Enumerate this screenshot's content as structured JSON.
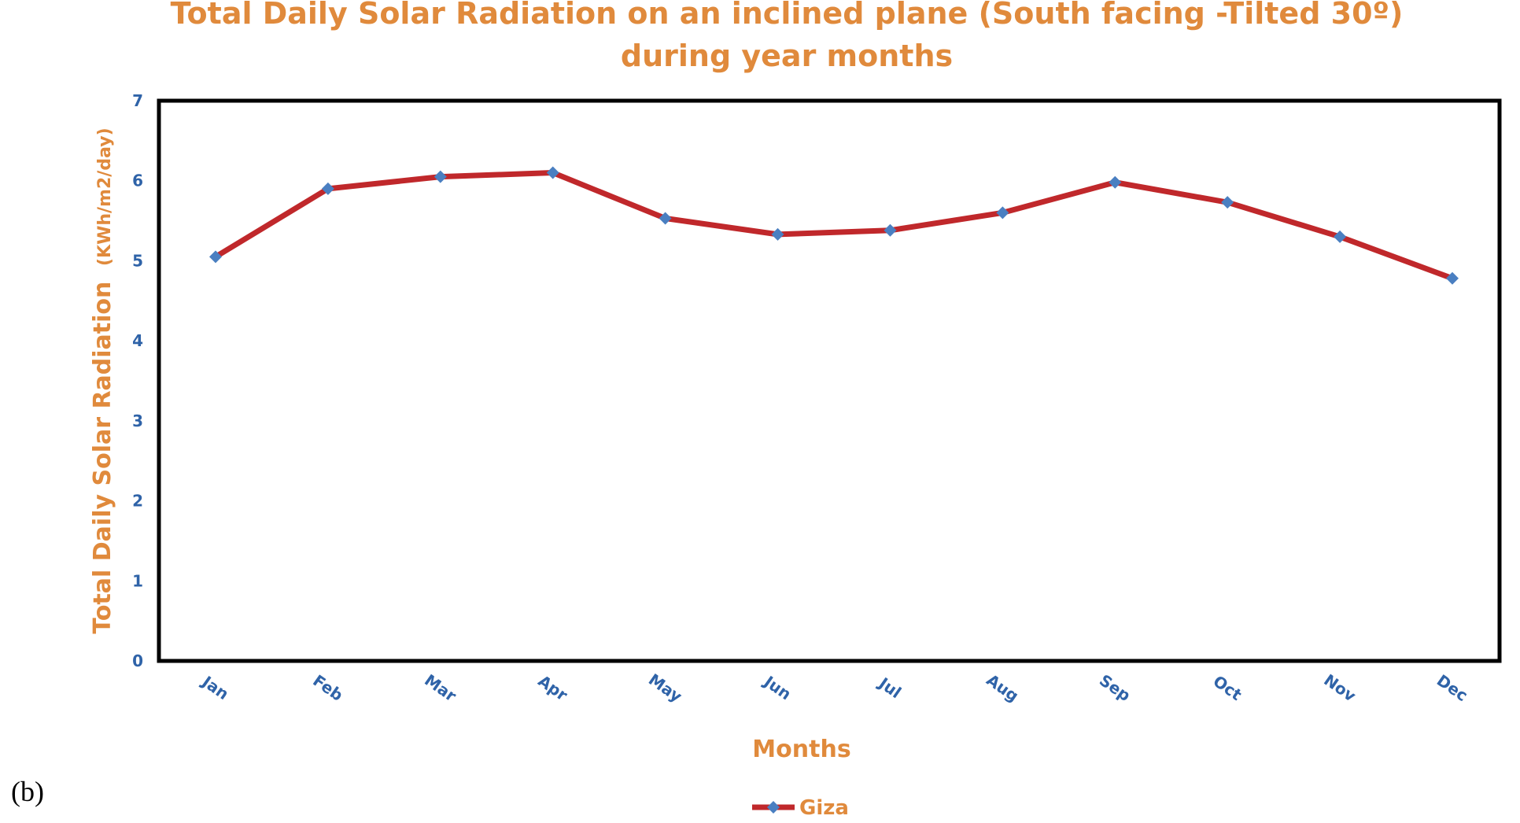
{
  "caption": "(b)",
  "chart_data": {
    "type": "line",
    "title_lines": [
      "Total Daily Solar Radiation on an inclined plane (South facing -Tilted 30º)",
      "during year months"
    ],
    "xlabel": "Months",
    "ylabel": "Total Daily Solar Radiation",
    "ylabel_unit": "(KWh/m2/day)",
    "categories": [
      "Jan",
      "Feb",
      "Mar",
      "Apr",
      "May",
      "Jun",
      "Jul",
      "Aug",
      "Sep",
      "Oct",
      "Nov",
      "Dec"
    ],
    "series": [
      {
        "name": "Giza",
        "values": [
          5.05,
          5.9,
          6.05,
          6.1,
          5.53,
          5.33,
          5.38,
          5.6,
          5.98,
          5.73,
          5.3,
          4.78
        ],
        "line_color": "#c0282b",
        "marker_color": "#4a7fc1"
      }
    ],
    "ylim": [
      0,
      7
    ],
    "yticks": [
      "0",
      "1",
      "2",
      "3",
      "4",
      "5",
      "6",
      "7"
    ],
    "grid": false,
    "legend_position": "bottom"
  }
}
